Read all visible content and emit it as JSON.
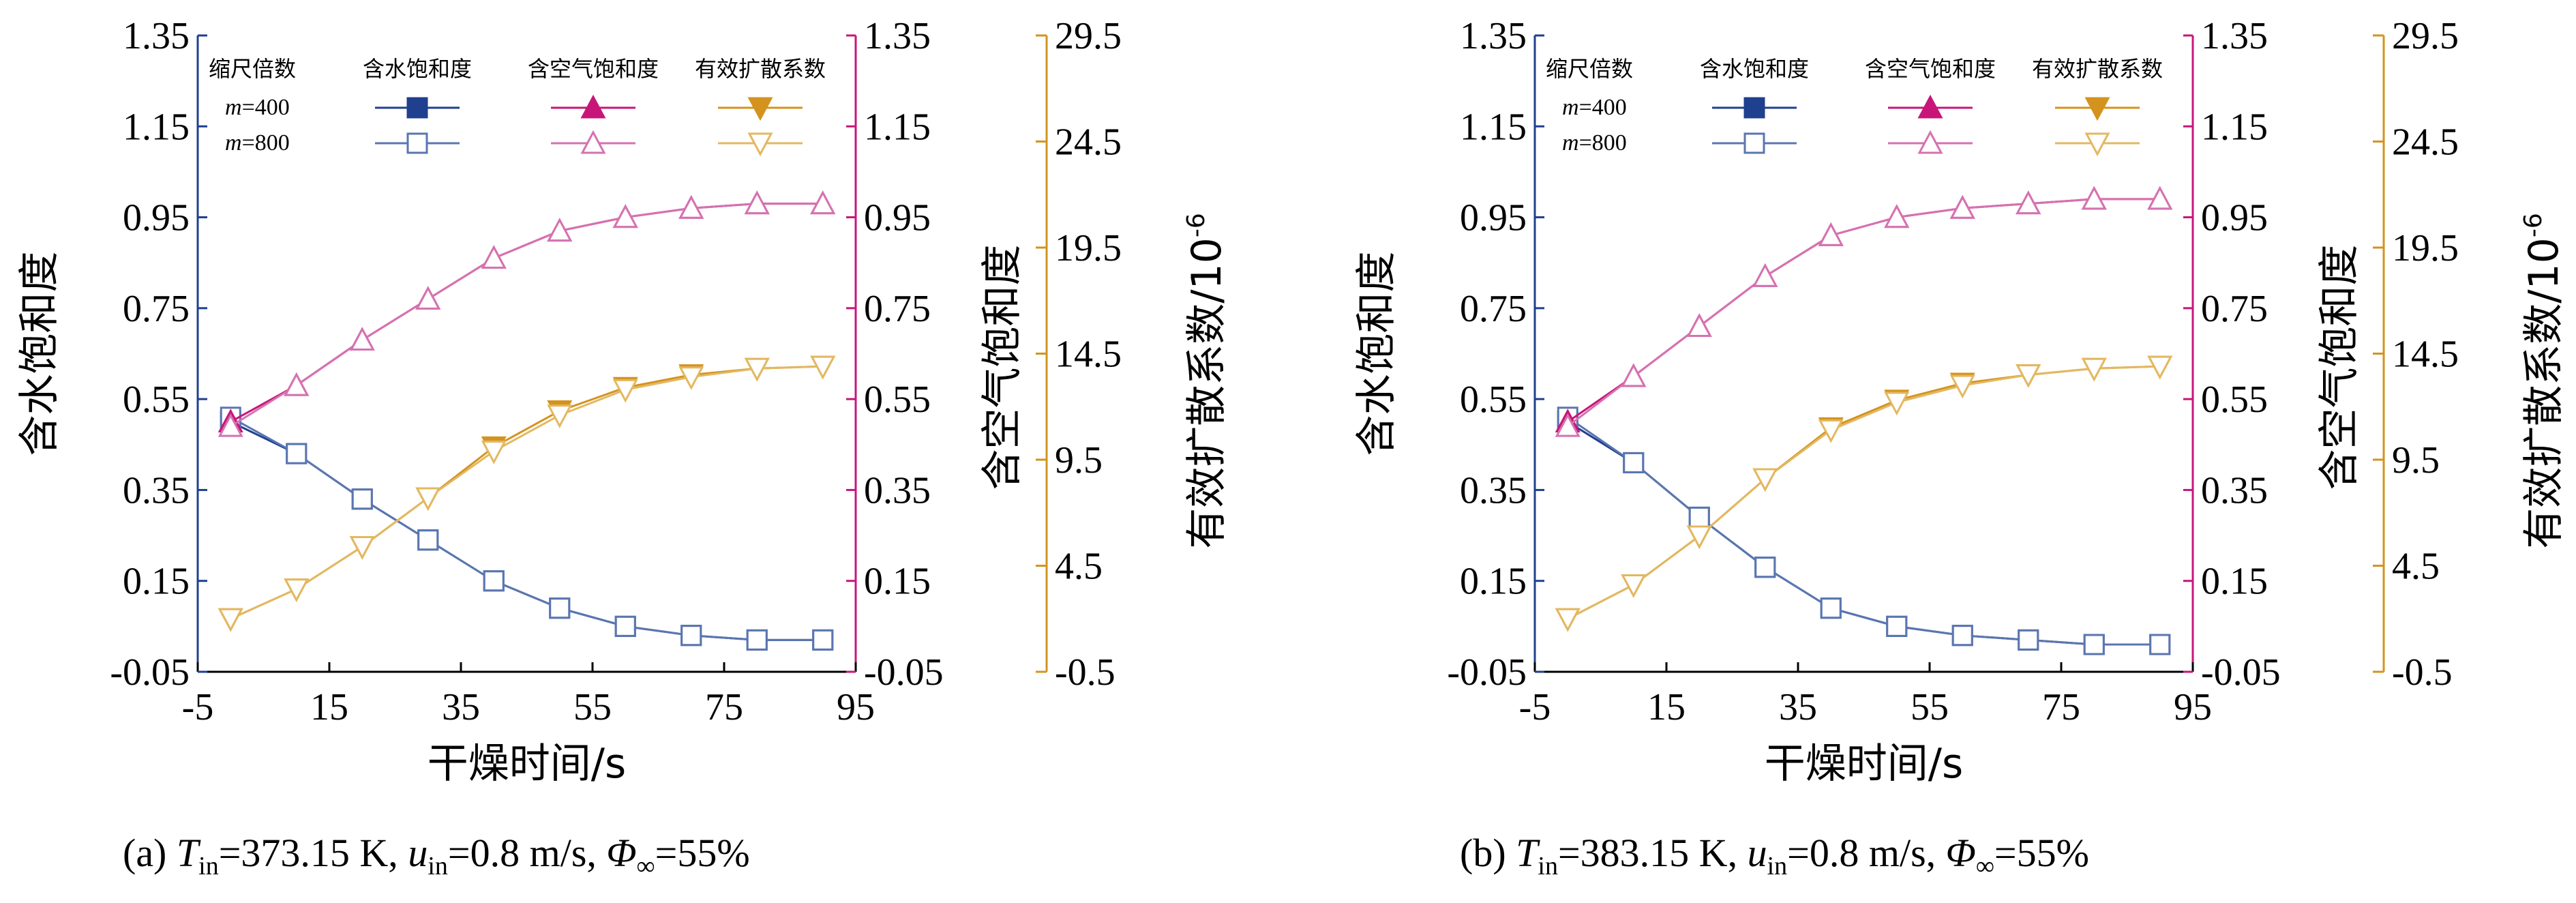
{
  "chart_data": [
    {
      "type": "line",
      "panel_label": "(a)",
      "caption_parts": {
        "t": "T",
        "t_sub": "in",
        "t_val": "=373.15 K, ",
        "u": "u",
        "u_sub": "in",
        "u_val": "=0.8 m/s,  ",
        "phi": "Φ",
        "phi_sub": "∞",
        "phi_val": "=55%"
      },
      "xlabel": "干燥时间/s",
      "ylabel_left": "含水饱和度",
      "ylabel_right1": "含空气饱和度",
      "ylabel_right2": "有效扩散系数/10",
      "ylabel_right2_exp": "-6",
      "xlim": [
        -5,
        95
      ],
      "xticks": [
        "-5",
        "15",
        "35",
        "55",
        "75",
        "95"
      ],
      "ylim_left": [
        -0.05,
        1.35
      ],
      "yticks_left": [
        "-0.05",
        "0.15",
        "0.35",
        "0.55",
        "0.75",
        "0.95",
        "1.15",
        "1.35"
      ],
      "ylim_right1": [
        -0.05,
        1.35
      ],
      "yticks_right1": [
        "-0.05",
        "0.15",
        "0.35",
        "0.55",
        "0.75",
        "0.95",
        "1.15",
        "1.35"
      ],
      "ylim_right2": [
        -0.5,
        29.5
      ],
      "yticks_right2": [
        "-0.5",
        "4.5",
        "9.5",
        "14.5",
        "19.5",
        "24.5",
        "29.5"
      ],
      "legend": {
        "header": "缩尺倍数",
        "col_water": "含水饱和度",
        "col_air": "含空气饱和度",
        "col_diff": "有效扩散系数",
        "row1_m": "m",
        "row1_val": "=400",
        "row2_m": "m",
        "row2_val": "=800"
      },
      "x": [
        0,
        10,
        20,
        30,
        40,
        50,
        60,
        70,
        80,
        90
      ],
      "series": [
        {
          "quantity": "water",
          "scale": "m=400",
          "marker": "filled-square",
          "color": "#1f3f8f",
          "values": [
            0.5,
            0.43,
            0.33,
            0.24,
            0.15,
            0.09,
            0.05,
            0.03,
            0.02,
            0.02
          ]
        },
        {
          "quantity": "water",
          "scale": "m=800",
          "marker": "open-square",
          "color": "#5a76b0",
          "values": [
            0.51,
            0.43,
            0.33,
            0.24,
            0.15,
            0.09,
            0.05,
            0.03,
            0.02,
            0.02
          ]
        },
        {
          "quantity": "air",
          "scale": "m=400",
          "marker": "filled-triangle-up",
          "color": "#c8157a",
          "values": [
            0.5,
            0.58,
            0.68,
            0.77,
            0.86,
            0.92,
            0.95,
            0.97,
            0.98,
            0.98
          ]
        },
        {
          "quantity": "air",
          "scale": "m=800",
          "marker": "open-triangle-up",
          "color": "#d572b0",
          "values": [
            0.49,
            0.58,
            0.68,
            0.77,
            0.86,
            0.92,
            0.95,
            0.97,
            0.98,
            0.98
          ]
        },
        {
          "quantity": "diffusion",
          "scale": "m=400",
          "marker": "filled-triangle-down",
          "color": "#d4931e",
          "values": [
            2.0,
            3.4,
            5.4,
            7.7,
            10.1,
            11.8,
            12.9,
            13.5,
            13.8,
            13.9
          ]
        },
        {
          "quantity": "diffusion",
          "scale": "m=800",
          "marker": "open-triangle-down",
          "color": "#e3b861",
          "values": [
            2.0,
            3.4,
            5.4,
            7.7,
            9.9,
            11.6,
            12.8,
            13.4,
            13.8,
            13.9
          ]
        }
      ]
    },
    {
      "type": "line",
      "panel_label": "(b)",
      "caption_parts": {
        "t": "T",
        "t_sub": "in",
        "t_val": "=383.15 K, ",
        "u": "u",
        "u_sub": "in",
        "u_val": "=0.8 m/s,  ",
        "phi": "Φ",
        "phi_sub": "∞",
        "phi_val": "=55%"
      },
      "xlabel": "干燥时间/s",
      "ylabel_left": "含水饱和度",
      "ylabel_right1": "含空气饱和度",
      "ylabel_right2": "有效扩散系数/10",
      "ylabel_right2_exp": "-6",
      "xlim": [
        -5,
        95
      ],
      "xticks": [
        "-5",
        "15",
        "35",
        "55",
        "75",
        "95"
      ],
      "ylim_left": [
        -0.05,
        1.35
      ],
      "yticks_left": [
        "-0.05",
        "0.15",
        "0.35",
        "0.55",
        "0.75",
        "0.95",
        "1.15",
        "1.35"
      ],
      "ylim_right1": [
        -0.05,
        1.35
      ],
      "yticks_right1": [
        "-0.05",
        "0.15",
        "0.35",
        "0.55",
        "0.75",
        "0.95",
        "1.15",
        "1.35"
      ],
      "ylim_right2": [
        -0.5,
        29.5
      ],
      "yticks_right2": [
        "-0.5",
        "4.5",
        "9.5",
        "14.5",
        "19.5",
        "24.5",
        "29.5"
      ],
      "legend": {
        "header": "缩尺倍数",
        "col_water": "含水饱和度",
        "col_air": "含空气饱和度",
        "col_diff": "有效扩散系数",
        "row1_m": "m",
        "row1_val": "=400",
        "row2_m": "m",
        "row2_val": "=800"
      },
      "x": [
        0,
        10,
        20,
        30,
        40,
        50,
        60,
        70,
        80,
        90
      ],
      "series": [
        {
          "quantity": "water",
          "scale": "m=400",
          "marker": "filled-square",
          "color": "#1f3f8f",
          "values": [
            0.5,
            0.41,
            0.29,
            0.18,
            0.09,
            0.05,
            0.03,
            0.02,
            0.01,
            0.01
          ]
        },
        {
          "quantity": "water",
          "scale": "m=800",
          "marker": "open-square",
          "color": "#5a76b0",
          "values": [
            0.51,
            0.41,
            0.29,
            0.18,
            0.09,
            0.05,
            0.03,
            0.02,
            0.01,
            0.01
          ]
        },
        {
          "quantity": "air",
          "scale": "m=400",
          "marker": "filled-triangle-up",
          "color": "#c8157a",
          "values": [
            0.5,
            0.6,
            0.71,
            0.82,
            0.91,
            0.95,
            0.97,
            0.98,
            0.99,
            0.99
          ]
        },
        {
          "quantity": "air",
          "scale": "m=800",
          "marker": "open-triangle-up",
          "color": "#d572b0",
          "values": [
            0.49,
            0.6,
            0.71,
            0.82,
            0.91,
            0.95,
            0.97,
            0.98,
            0.99,
            0.99
          ]
        },
        {
          "quantity": "diffusion",
          "scale": "m=400",
          "marker": "filled-triangle-down",
          "color": "#d4931e",
          "values": [
            2.0,
            3.6,
            5.9,
            8.6,
            11.0,
            12.3,
            13.1,
            13.5,
            13.8,
            13.9
          ]
        },
        {
          "quantity": "diffusion",
          "scale": "m=800",
          "marker": "open-triangle-down",
          "color": "#e3b861",
          "values": [
            2.0,
            3.6,
            5.9,
            8.6,
            10.9,
            12.2,
            13.0,
            13.5,
            13.8,
            13.9
          ]
        }
      ]
    }
  ]
}
